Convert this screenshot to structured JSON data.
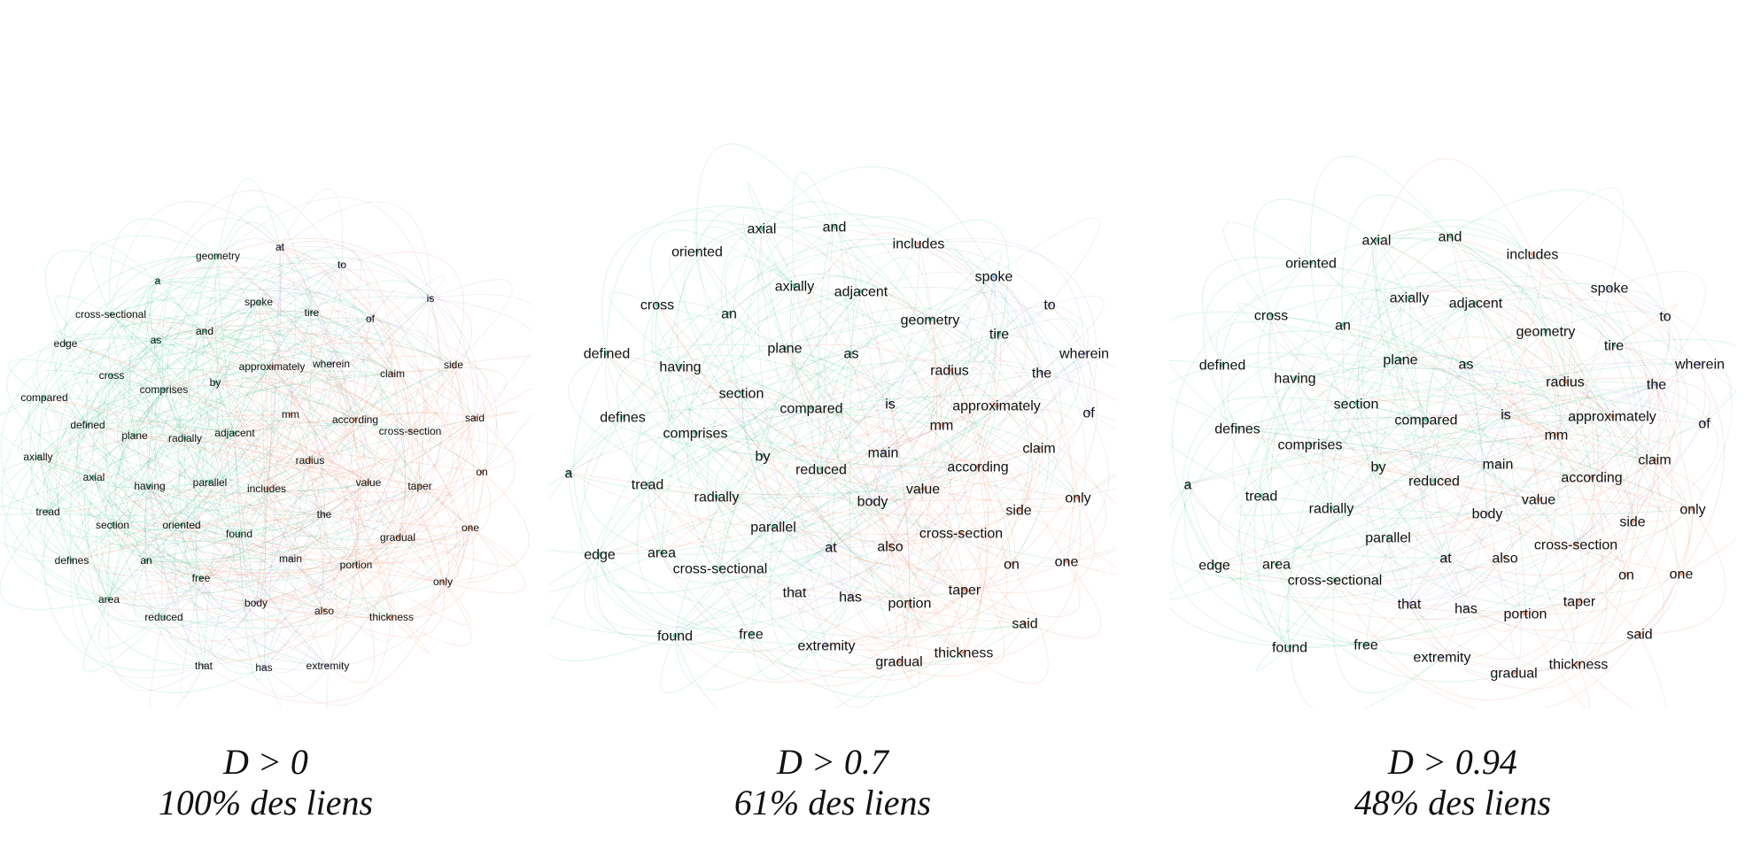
{
  "colors": {
    "green": "#3cc08c",
    "orange": "#f07a52",
    "violet": "#a79ad8",
    "blue": "#7fb2e0"
  },
  "panels": [
    {
      "threshold_label": "D > 0",
      "links_label": "100% des liens",
      "words": [
        {
          "t": "at",
          "c": "violet"
        },
        {
          "t": "geometry",
          "c": "green"
        },
        {
          "t": "to",
          "c": "violet"
        },
        {
          "t": "a",
          "c": "green"
        },
        {
          "t": "is",
          "c": "violet"
        },
        {
          "t": "spoke",
          "c": "green"
        },
        {
          "t": "tire",
          "c": "green"
        },
        {
          "t": "cross-sectional",
          "c": "green"
        },
        {
          "t": "of",
          "c": "violet"
        },
        {
          "t": "and",
          "c": "green"
        },
        {
          "t": "edge",
          "c": "green"
        },
        {
          "t": "as",
          "c": "green"
        },
        {
          "t": "wherein",
          "c": "violet"
        },
        {
          "t": "approximately",
          "c": "orange"
        },
        {
          "t": "side",
          "c": "orange"
        },
        {
          "t": "claim",
          "c": "orange"
        },
        {
          "t": "cross",
          "c": "green"
        },
        {
          "t": "by",
          "c": "green"
        },
        {
          "t": "comprises",
          "c": "green"
        },
        {
          "t": "compared",
          "c": "green"
        },
        {
          "t": "mm",
          "c": "orange"
        },
        {
          "t": "said",
          "c": "orange"
        },
        {
          "t": "according",
          "c": "orange"
        },
        {
          "t": "defined",
          "c": "green"
        },
        {
          "t": "cross-section",
          "c": "orange"
        },
        {
          "t": "adjacent",
          "c": "green"
        },
        {
          "t": "plane",
          "c": "green"
        },
        {
          "t": "radially",
          "c": "green"
        },
        {
          "t": "axially",
          "c": "green"
        },
        {
          "t": "radius",
          "c": "orange"
        },
        {
          "t": "on",
          "c": "orange"
        },
        {
          "t": "axial",
          "c": "green"
        },
        {
          "t": "parallel",
          "c": "green"
        },
        {
          "t": "value",
          "c": "orange"
        },
        {
          "t": "having",
          "c": "green"
        },
        {
          "t": "includes",
          "c": "orange"
        },
        {
          "t": "taper",
          "c": "orange"
        },
        {
          "t": "tread",
          "c": "green"
        },
        {
          "t": "the",
          "c": "violet"
        },
        {
          "t": "section",
          "c": "green"
        },
        {
          "t": "oriented",
          "c": "green"
        },
        {
          "t": "one",
          "c": "orange"
        },
        {
          "t": "found",
          "c": "green"
        },
        {
          "t": "gradual",
          "c": "orange"
        },
        {
          "t": "defines",
          "c": "green"
        },
        {
          "t": "an",
          "c": "green"
        },
        {
          "t": "main",
          "c": "violet"
        },
        {
          "t": "portion",
          "c": "orange"
        },
        {
          "t": "free",
          "c": "green"
        },
        {
          "t": "only",
          "c": "orange"
        },
        {
          "t": "area",
          "c": "green"
        },
        {
          "t": "body",
          "c": "violet"
        },
        {
          "t": "reduced",
          "c": "green"
        },
        {
          "t": "also",
          "c": "orange"
        },
        {
          "t": "thickness",
          "c": "orange"
        },
        {
          "t": "that",
          "c": "violet"
        },
        {
          "t": "has",
          "c": "violet"
        },
        {
          "t": "extremity",
          "c": "violet"
        }
      ]
    },
    {
      "threshold_label": "D > 0.7",
      "links_label": "61% des liens",
      "words": [
        {
          "t": "axial",
          "c": "green"
        },
        {
          "t": "and",
          "c": "green"
        },
        {
          "t": "includes",
          "c": "orange"
        },
        {
          "t": "oriented",
          "c": "green"
        },
        {
          "t": "spoke",
          "c": "blue"
        },
        {
          "t": "axially",
          "c": "green"
        },
        {
          "t": "adjacent",
          "c": "green"
        },
        {
          "t": "to",
          "c": "violet"
        },
        {
          "t": "cross",
          "c": "green"
        },
        {
          "t": "an",
          "c": "green"
        },
        {
          "t": "geometry",
          "c": "green"
        },
        {
          "t": "tire",
          "c": "green"
        },
        {
          "t": "defined",
          "c": "green"
        },
        {
          "t": "plane",
          "c": "green"
        },
        {
          "t": "as",
          "c": "green"
        },
        {
          "t": "wherein",
          "c": "violet"
        },
        {
          "t": "having",
          "c": "green"
        },
        {
          "t": "radius",
          "c": "orange"
        },
        {
          "t": "the",
          "c": "violet"
        },
        {
          "t": "section",
          "c": "green"
        },
        {
          "t": "is",
          "c": "violet"
        },
        {
          "t": "compared",
          "c": "green"
        },
        {
          "t": "approximately",
          "c": "orange"
        },
        {
          "t": "defines",
          "c": "green"
        },
        {
          "t": "of",
          "c": "violet"
        },
        {
          "t": "mm",
          "c": "orange"
        },
        {
          "t": "comprises",
          "c": "green"
        },
        {
          "t": "claim",
          "c": "orange"
        },
        {
          "t": "by",
          "c": "green"
        },
        {
          "t": "main",
          "c": "violet"
        },
        {
          "t": "according",
          "c": "orange"
        },
        {
          "t": "reduced",
          "c": "green"
        },
        {
          "t": "a",
          "c": "green"
        },
        {
          "t": "tread",
          "c": "green"
        },
        {
          "t": "value",
          "c": "orange"
        },
        {
          "t": "radially",
          "c": "green"
        },
        {
          "t": "body",
          "c": "violet"
        },
        {
          "t": "only",
          "c": "orange"
        },
        {
          "t": "side",
          "c": "orange"
        },
        {
          "t": "parallel",
          "c": "green"
        },
        {
          "t": "cross-section",
          "c": "orange"
        },
        {
          "t": "at",
          "c": "violet"
        },
        {
          "t": "also",
          "c": "orange"
        },
        {
          "t": "edge",
          "c": "green"
        },
        {
          "t": "area",
          "c": "green"
        },
        {
          "t": "on",
          "c": "orange"
        },
        {
          "t": "one",
          "c": "orange"
        },
        {
          "t": "cross-sectional",
          "c": "green"
        },
        {
          "t": "that",
          "c": "violet"
        },
        {
          "t": "has",
          "c": "violet"
        },
        {
          "t": "taper",
          "c": "orange"
        },
        {
          "t": "portion",
          "c": "orange"
        },
        {
          "t": "said",
          "c": "orange"
        },
        {
          "t": "found",
          "c": "green"
        },
        {
          "t": "free",
          "c": "green"
        },
        {
          "t": "extremity",
          "c": "violet"
        },
        {
          "t": "thickness",
          "c": "orange"
        },
        {
          "t": "gradual",
          "c": "orange"
        }
      ]
    },
    {
      "threshold_label": "D > 0.94",
      "links_label": "48% des liens",
      "words": [
        {
          "t": "axial",
          "c": "green"
        },
        {
          "t": "and",
          "c": "green"
        },
        {
          "t": "includes",
          "c": "orange"
        },
        {
          "t": "oriented",
          "c": "green"
        },
        {
          "t": "spoke",
          "c": "blue"
        },
        {
          "t": "axially",
          "c": "green"
        },
        {
          "t": "adjacent",
          "c": "green"
        },
        {
          "t": "to",
          "c": "violet"
        },
        {
          "t": "cross",
          "c": "green"
        },
        {
          "t": "an",
          "c": "green"
        },
        {
          "t": "geometry",
          "c": "green"
        },
        {
          "t": "tire",
          "c": "green"
        },
        {
          "t": "defined",
          "c": "green"
        },
        {
          "t": "plane",
          "c": "green"
        },
        {
          "t": "as",
          "c": "green"
        },
        {
          "t": "wherein",
          "c": "violet"
        },
        {
          "t": "having",
          "c": "green"
        },
        {
          "t": "radius",
          "c": "orange"
        },
        {
          "t": "the",
          "c": "violet"
        },
        {
          "t": "section",
          "c": "green"
        },
        {
          "t": "is",
          "c": "violet"
        },
        {
          "t": "compared",
          "c": "green"
        },
        {
          "t": "approximately",
          "c": "orange"
        },
        {
          "t": "defines",
          "c": "green"
        },
        {
          "t": "of",
          "c": "violet"
        },
        {
          "t": "mm",
          "c": "orange"
        },
        {
          "t": "comprises",
          "c": "green"
        },
        {
          "t": "claim",
          "c": "orange"
        },
        {
          "t": "by",
          "c": "green"
        },
        {
          "t": "main",
          "c": "violet"
        },
        {
          "t": "a",
          "c": "green"
        },
        {
          "t": "reduced",
          "c": "green"
        },
        {
          "t": "according",
          "c": "orange"
        },
        {
          "t": "tread",
          "c": "green"
        },
        {
          "t": "value",
          "c": "orange"
        },
        {
          "t": "radially",
          "c": "green"
        },
        {
          "t": "body",
          "c": "violet"
        },
        {
          "t": "only",
          "c": "orange"
        },
        {
          "t": "side",
          "c": "orange"
        },
        {
          "t": "parallel",
          "c": "green"
        },
        {
          "t": "cross-section",
          "c": "orange"
        },
        {
          "t": "at",
          "c": "violet"
        },
        {
          "t": "also",
          "c": "orange"
        },
        {
          "t": "edge",
          "c": "green"
        },
        {
          "t": "area",
          "c": "green"
        },
        {
          "t": "on",
          "c": "orange"
        },
        {
          "t": "one",
          "c": "orange"
        },
        {
          "t": "cross-sectional",
          "c": "green"
        },
        {
          "t": "that",
          "c": "violet"
        },
        {
          "t": "has",
          "c": "violet"
        },
        {
          "t": "taper",
          "c": "orange"
        },
        {
          "t": "portion",
          "c": "orange"
        },
        {
          "t": "said",
          "c": "orange"
        },
        {
          "t": "found",
          "c": "green"
        },
        {
          "t": "free",
          "c": "green"
        },
        {
          "t": "extremity",
          "c": "violet"
        },
        {
          "t": "thickness",
          "c": "orange"
        },
        {
          "t": "gradual",
          "c": "orange"
        }
      ]
    }
  ]
}
